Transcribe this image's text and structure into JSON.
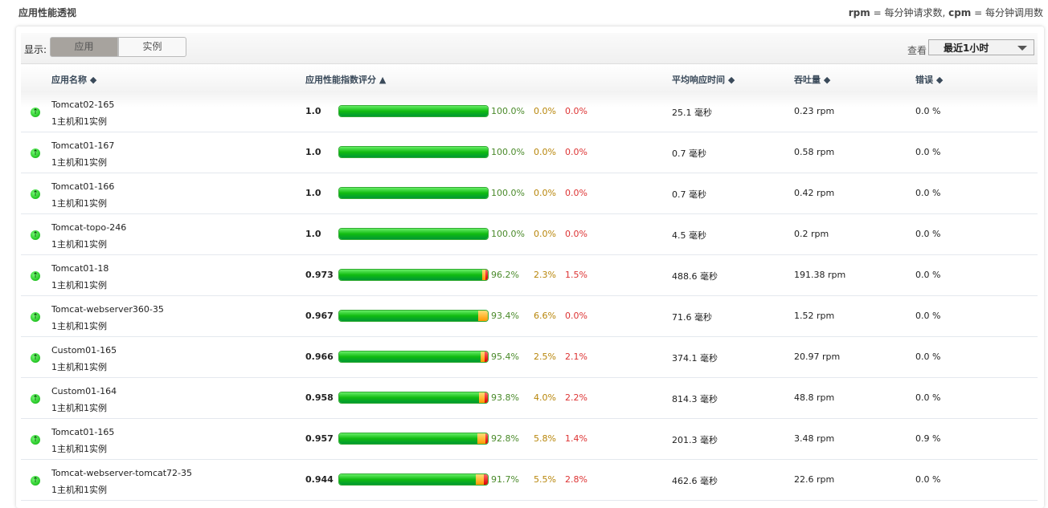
{
  "page": {
    "title": "应用性能透视",
    "legend_rpm": "rpm",
    "legend_rpm_desc": " = 每分钟请求数, ",
    "legend_cpm": "cpm",
    "legend_cpm_desc": " = 每分钟调用数"
  },
  "toolbar": {
    "show_label": "显示:",
    "seg_app": "应用",
    "seg_instance": "实例",
    "view_label": "查看",
    "time_range": "最近1小时"
  },
  "headers": {
    "name": "应用名称 ◆",
    "score": "应用性能指数评分 ▲",
    "response": "平均响应时间 ◆",
    "throughput": "吞吐量 ◆",
    "error": "错误 ◆"
  },
  "colors": {
    "green": "#22bb22",
    "yellow": "#ff9900",
    "red": "#dd0000"
  },
  "rows": [
    {
      "name": "Tomcat02-165",
      "sub": "1主机和1实例",
      "score": "1.0",
      "g": 100.0,
      "y": 0.0,
      "r": 0.0,
      "pg": "100.0%",
      "py": "0.0%",
      "pr": "0.0%",
      "rt": "25.1 毫秒",
      "tp": "0.23 rpm",
      "er": "0.0 %"
    },
    {
      "name": "Tomcat01-167",
      "sub": "1主机和1实例",
      "score": "1.0",
      "g": 100.0,
      "y": 0.0,
      "r": 0.0,
      "pg": "100.0%",
      "py": "0.0%",
      "pr": "0.0%",
      "rt": "0.7 毫秒",
      "tp": "0.58 rpm",
      "er": "0.0 %"
    },
    {
      "name": "Tomcat01-166",
      "sub": "1主机和1实例",
      "score": "1.0",
      "g": 100.0,
      "y": 0.0,
      "r": 0.0,
      "pg": "100.0%",
      "py": "0.0%",
      "pr": "0.0%",
      "rt": "0.7 毫秒",
      "tp": "0.42 rpm",
      "er": "0.0 %"
    },
    {
      "name": "Tomcat-topo-246",
      "sub": "1主机和1实例",
      "score": "1.0",
      "g": 100.0,
      "y": 0.0,
      "r": 0.0,
      "pg": "100.0%",
      "py": "0.0%",
      "pr": "0.0%",
      "rt": "4.5 毫秒",
      "tp": "0.2 rpm",
      "er": "0.0 %"
    },
    {
      "name": "Tomcat01-18",
      "sub": "1主机和1实例",
      "score": "0.973",
      "g": 96.2,
      "y": 2.3,
      "r": 1.5,
      "pg": "96.2%",
      "py": "2.3%",
      "pr": "1.5%",
      "rt": "488.6 毫秒",
      "tp": "191.38 rpm",
      "er": "0.0 %"
    },
    {
      "name": "Tomcat-webserver360-35",
      "sub": "1主机和1实例",
      "score": "0.967",
      "g": 93.4,
      "y": 6.6,
      "r": 0.0,
      "pg": "93.4%",
      "py": "6.6%",
      "pr": "0.0%",
      "rt": "71.6 毫秒",
      "tp": "1.52 rpm",
      "er": "0.0 %"
    },
    {
      "name": "Custom01-165",
      "sub": "1主机和1实例",
      "score": "0.966",
      "g": 95.4,
      "y": 2.5,
      "r": 2.1,
      "pg": "95.4%",
      "py": "2.5%",
      "pr": "2.1%",
      "rt": "374.1 毫秒",
      "tp": "20.97 rpm",
      "er": "0.0 %"
    },
    {
      "name": "Custom01-164",
      "sub": "1主机和1实例",
      "score": "0.958",
      "g": 93.8,
      "y": 4.0,
      "r": 2.2,
      "pg": "93.8%",
      "py": "4.0%",
      "pr": "2.2%",
      "rt": "814.3 毫秒",
      "tp": "48.8 rpm",
      "er": "0.0 %"
    },
    {
      "name": "Tomcat01-165",
      "sub": "1主机和1实例",
      "score": "0.957",
      "g": 92.8,
      "y": 5.8,
      "r": 1.4,
      "pg": "92.8%",
      "py": "5.8%",
      "pr": "1.4%",
      "rt": "201.3 毫秒",
      "tp": "3.48 rpm",
      "er": "0.9 %"
    },
    {
      "name": "Tomcat-webserver-tomcat72-35",
      "sub": "1主机和1实例",
      "score": "0.944",
      "g": 91.7,
      "y": 5.5,
      "r": 2.8,
      "pg": "91.7%",
      "py": "5.5%",
      "pr": "2.8%",
      "rt": "462.6 毫秒",
      "tp": "22.6 rpm",
      "er": "0.0 %"
    }
  ]
}
